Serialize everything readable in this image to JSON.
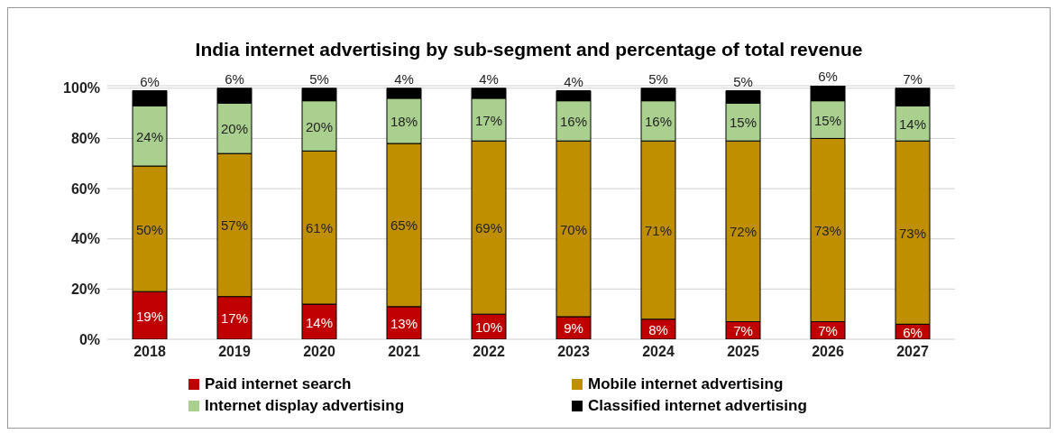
{
  "chart_data": {
    "type": "bar",
    "title": "India internet advertising by sub-segment and percentage of total revenue",
    "categories": [
      "2018",
      "2019",
      "2020",
      "2021",
      "2022",
      "2023",
      "2024",
      "2025",
      "2026",
      "2027"
    ],
    "stacked": true,
    "ylim": [
      0,
      101
    ],
    "yticks": [
      {
        "value": 0,
        "label": "0%"
      },
      {
        "value": 20,
        "label": "20%"
      },
      {
        "value": 40,
        "label": "40%"
      },
      {
        "value": 60,
        "label": "60%"
      },
      {
        "value": 80,
        "label": "80%"
      },
      {
        "value": 100,
        "label": "100%"
      }
    ],
    "grid": "y",
    "legend": "bottom",
    "series": [
      {
        "name": "Paid internet search",
        "color": "#c00000",
        "values": [
          19,
          17,
          14,
          13,
          10,
          9,
          8,
          7,
          7,
          6
        ],
        "value_labels": [
          "19%",
          "17%",
          "14%",
          "13%",
          "10%",
          "9%",
          "8%",
          "7%",
          "7%",
          "6%"
        ]
      },
      {
        "name": "Mobile internet advertising",
        "color": "#bf8f00",
        "values": [
          50,
          57,
          61,
          65,
          69,
          70,
          71,
          72,
          73,
          73
        ],
        "value_labels": [
          "50%",
          "57%",
          "61%",
          "65%",
          "69%",
          "70%",
          "71%",
          "72%",
          "73%",
          "73%"
        ]
      },
      {
        "name": "Internet display advertising",
        "color": "#a9d08e",
        "values": [
          24,
          20,
          20,
          18,
          17,
          16,
          16,
          15,
          15,
          14
        ],
        "value_labels": [
          "24%",
          "20%",
          "20%",
          "18%",
          "17%",
          "16%",
          "16%",
          "15%",
          "15%",
          "14%"
        ]
      },
      {
        "name": "Classified internet advertising",
        "color": "#000000",
        "values": [
          6,
          6,
          5,
          4,
          4,
          4,
          5,
          5,
          6,
          7
        ],
        "value_labels": [
          "6%",
          "6%",
          "5%",
          "4%",
          "4%",
          "4%",
          "5%",
          "5%",
          "6%",
          "7%"
        ]
      }
    ]
  }
}
